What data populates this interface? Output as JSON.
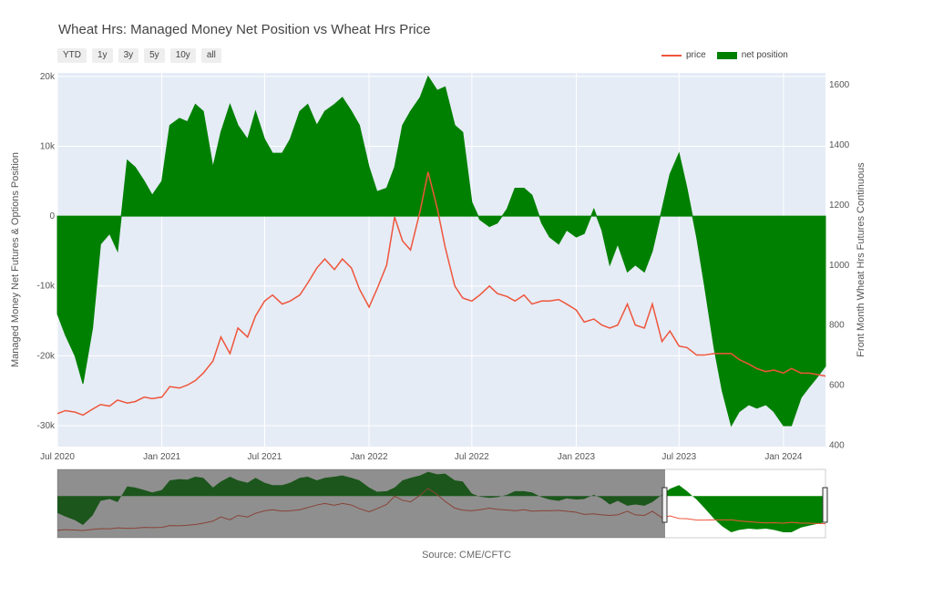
{
  "title": "Wheat Hrs: Managed Money Net Position vs Wheat Hrs Price",
  "range_buttons": [
    "YTD",
    "1y",
    "3y",
    "5y",
    "10y",
    "all"
  ],
  "legend": {
    "price": "price",
    "net": "net position"
  },
  "source": "Source: CME/CFTC",
  "colors": {
    "price": "#ef553b",
    "net": "#008000",
    "plot_bg": "#e5ecf6",
    "grid": "#ffffff"
  },
  "chart_data": {
    "type": "line",
    "title": "Wheat Hrs: Managed Money Net Position vs Wheat Hrs Price",
    "xlabel": "",
    "ylabel_left": "Managed Money Net Futures & Options Position",
    "ylabel_right": "Front Month Wheat Hrs Futures Continuous",
    "x_ticks": [
      "Jul 2020",
      "Jan 2021",
      "Jul 2021",
      "Jan 2022",
      "Jul 2022",
      "Jan 2023",
      "Jul 2023",
      "Jan 2024"
    ],
    "y_left_ticks": [
      "20k",
      "10k",
      "0",
      "-10k",
      "-20k",
      "-30k"
    ],
    "y_right_ticks": [
      "1600",
      "1400",
      "1200",
      "1000",
      "800",
      "600",
      "400"
    ],
    "ylim_left": [
      -33000,
      20500
    ],
    "ylim_right": [
      395,
      1640
    ],
    "xlim": [
      "2020-07-01",
      "2024-03-15"
    ],
    "series": [
      {
        "name": "net position",
        "kind": "area",
        "x": [
          "2020-07-01",
          "2020-07-15",
          "2020-08-01",
          "2020-08-15",
          "2020-09-01",
          "2020-09-15",
          "2020-10-01",
          "2020-10-15",
          "2020-11-01",
          "2020-11-15",
          "2020-12-01",
          "2020-12-15",
          "2021-01-01",
          "2021-01-15",
          "2021-02-01",
          "2021-02-15",
          "2021-03-01",
          "2021-03-15",
          "2021-04-01",
          "2021-04-15",
          "2021-05-01",
          "2021-05-15",
          "2021-06-01",
          "2021-06-15",
          "2021-07-01",
          "2021-07-15",
          "2021-08-01",
          "2021-08-15",
          "2021-09-01",
          "2021-09-15",
          "2021-10-01",
          "2021-10-15",
          "2021-11-01",
          "2021-11-15",
          "2021-12-01",
          "2021-12-15",
          "2022-01-01",
          "2022-01-15",
          "2022-02-01",
          "2022-02-15",
          "2022-03-01",
          "2022-03-15",
          "2022-04-01",
          "2022-04-15",
          "2022-05-01",
          "2022-05-15",
          "2022-06-01",
          "2022-06-15",
          "2022-07-01",
          "2022-07-15",
          "2022-08-01",
          "2022-08-15",
          "2022-09-01",
          "2022-09-15",
          "2022-10-01",
          "2022-10-15",
          "2022-11-01",
          "2022-11-15",
          "2022-12-01",
          "2022-12-15",
          "2023-01-01",
          "2023-01-15",
          "2023-02-01",
          "2023-02-15",
          "2023-03-01",
          "2023-03-15",
          "2023-04-01",
          "2023-04-15",
          "2023-05-01",
          "2023-05-15",
          "2023-06-01",
          "2023-06-15",
          "2023-07-01",
          "2023-07-15",
          "2023-08-01",
          "2023-08-15",
          "2023-09-01",
          "2023-09-15",
          "2023-10-01",
          "2023-10-15",
          "2023-11-01",
          "2023-11-15",
          "2023-12-01",
          "2023-12-15",
          "2024-01-01",
          "2024-01-15",
          "2024-02-01",
          "2024-02-15",
          "2024-03-01",
          "2024-03-15"
        ],
        "values": [
          -14000,
          -17000,
          -20000,
          -24000,
          -16000,
          -4000,
          -2500,
          -5000,
          8000,
          7000,
          5000,
          3000,
          5000,
          13000,
          14000,
          13500,
          16000,
          15000,
          7000,
          12000,
          16000,
          13000,
          11000,
          15000,
          11000,
          9000,
          9000,
          11000,
          15000,
          16000,
          13000,
          15000,
          16000,
          17000,
          15000,
          13000,
          7000,
          3500,
          4000,
          7000,
          13000,
          15000,
          17000,
          20000,
          18000,
          18500,
          13000,
          12000,
          2000,
          -500,
          -1500,
          -1000,
          1000,
          4000,
          4000,
          3000,
          -1000,
          -3000,
          -4000,
          -2000,
          -3000,
          -2500,
          1000,
          -2000,
          -7000,
          -4000,
          -8000,
          -7000,
          -8000,
          -5000,
          1000,
          6000,
          9000,
          4000,
          -3000,
          -10000,
          -19000,
          -25000,
          -30000,
          -28000,
          -27000,
          -27500,
          -27000,
          -28000,
          -30000,
          -30000,
          -26000,
          -24500,
          -23000,
          -21500
        ]
      },
      {
        "name": "price",
        "kind": "line",
        "x": [
          "2020-07-01",
          "2020-07-15",
          "2020-08-01",
          "2020-08-15",
          "2020-09-01",
          "2020-09-15",
          "2020-10-01",
          "2020-10-15",
          "2020-11-01",
          "2020-11-15",
          "2020-12-01",
          "2020-12-15",
          "2021-01-01",
          "2021-01-15",
          "2021-02-01",
          "2021-02-15",
          "2021-03-01",
          "2021-03-15",
          "2021-04-01",
          "2021-04-15",
          "2021-05-01",
          "2021-05-15",
          "2021-06-01",
          "2021-06-15",
          "2021-07-01",
          "2021-07-15",
          "2021-08-01",
          "2021-08-15",
          "2021-09-01",
          "2021-09-15",
          "2021-10-01",
          "2021-10-15",
          "2021-11-01",
          "2021-11-15",
          "2021-12-01",
          "2021-12-15",
          "2022-01-01",
          "2022-01-15",
          "2022-02-01",
          "2022-02-15",
          "2022-03-01",
          "2022-03-15",
          "2022-04-01",
          "2022-04-15",
          "2022-05-01",
          "2022-05-15",
          "2022-06-01",
          "2022-06-15",
          "2022-07-01",
          "2022-07-15",
          "2022-08-01",
          "2022-08-15",
          "2022-09-01",
          "2022-09-15",
          "2022-10-01",
          "2022-10-15",
          "2022-11-01",
          "2022-11-15",
          "2022-12-01",
          "2022-12-15",
          "2023-01-01",
          "2023-01-15",
          "2023-02-01",
          "2023-02-15",
          "2023-03-01",
          "2023-03-15",
          "2023-04-01",
          "2023-04-15",
          "2023-05-01",
          "2023-05-15",
          "2023-06-01",
          "2023-06-15",
          "2023-07-01",
          "2023-07-15",
          "2023-08-01",
          "2023-08-15",
          "2023-09-01",
          "2023-09-15",
          "2023-10-01",
          "2023-10-15",
          "2023-11-01",
          "2023-11-15",
          "2023-12-01",
          "2023-12-15",
          "2024-01-01",
          "2024-01-15",
          "2024-02-01",
          "2024-02-15",
          "2024-03-01",
          "2024-03-15"
        ],
        "values": [
          505,
          515,
          510,
          500,
          520,
          535,
          530,
          550,
          540,
          545,
          560,
          555,
          560,
          595,
          590,
          600,
          615,
          640,
          680,
          760,
          705,
          790,
          760,
          830,
          880,
          900,
          870,
          880,
          900,
          940,
          990,
          1020,
          985,
          1020,
          990,
          920,
          860,
          920,
          1000,
          1160,
          1080,
          1050,
          1180,
          1310,
          1190,
          1060,
          930,
          890,
          880,
          900,
          930,
          905,
          895,
          880,
          900,
          870,
          880,
          880,
          885,
          870,
          850,
          810,
          820,
          800,
          790,
          800,
          870,
          800,
          790,
          870,
          745,
          780,
          730,
          725,
          700,
          700,
          705,
          705,
          705,
          685,
          670,
          655,
          645,
          650,
          640,
          655,
          640,
          640,
          635,
          630
        ]
      }
    ]
  }
}
